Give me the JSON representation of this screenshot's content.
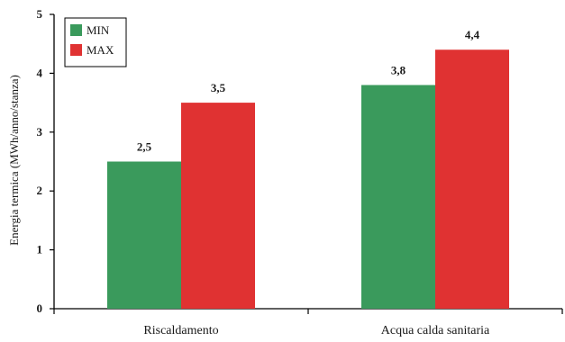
{
  "chart_data": {
    "type": "bar",
    "categories": [
      "Riscaldamento",
      "Acqua calda sanitaria"
    ],
    "series": [
      {
        "name": "MIN",
        "values": [
          2.5,
          3.8
        ],
        "color": "#3a9a5c"
      },
      {
        "name": "MAX",
        "values": [
          3.5,
          4.4
        ],
        "color": "#e03232"
      }
    ],
    "data_labels": [
      [
        "2,5",
        "3,8"
      ],
      [
        "3,5",
        "4,4"
      ]
    ],
    "ylabel": "Energia termica (MWh/anno/stanza)",
    "xlabel": "",
    "ylim": [
      0,
      5
    ],
    "yticks": [
      "0",
      "1",
      "2",
      "3",
      "4",
      "5"
    ],
    "grid": false,
    "legend_position": "top-left"
  }
}
